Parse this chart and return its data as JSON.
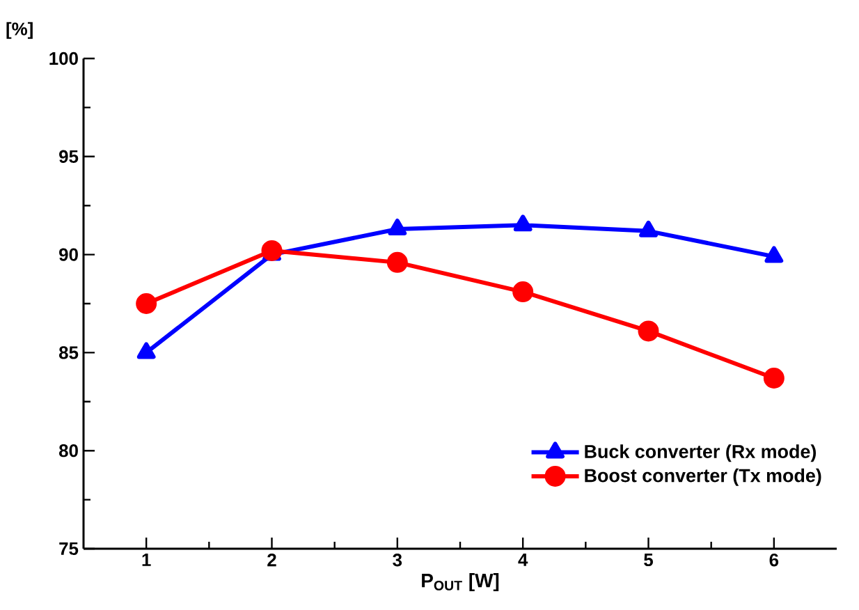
{
  "chart_data": {
    "type": "line",
    "xlabel": "P$_{OUT}$ [W]",
    "ylabel": "[%]",
    "x": [
      1,
      2,
      3,
      4,
      5,
      6
    ],
    "series": [
      {
        "name": "Buck converter (Rx mode)",
        "color": "#0000ff",
        "marker": "triangle",
        "values": [
          85.0,
          90.0,
          91.3,
          91.5,
          91.2,
          89.9
        ]
      },
      {
        "name": "Boost converter (Tx mode)",
        "color": "#ff0000",
        "marker": "circle",
        "values": [
          87.5,
          90.2,
          89.6,
          88.1,
          86.1,
          83.7
        ]
      }
    ],
    "xlim": [
      0.5,
      6.5
    ],
    "ylim": [
      75,
      100
    ],
    "xticks": [
      1,
      2,
      3,
      4,
      5,
      6
    ],
    "yticks": [
      75,
      80,
      85,
      90,
      95,
      100
    ],
    "grid": false,
    "legend": "bottom right",
    "line_style": "solid"
  }
}
